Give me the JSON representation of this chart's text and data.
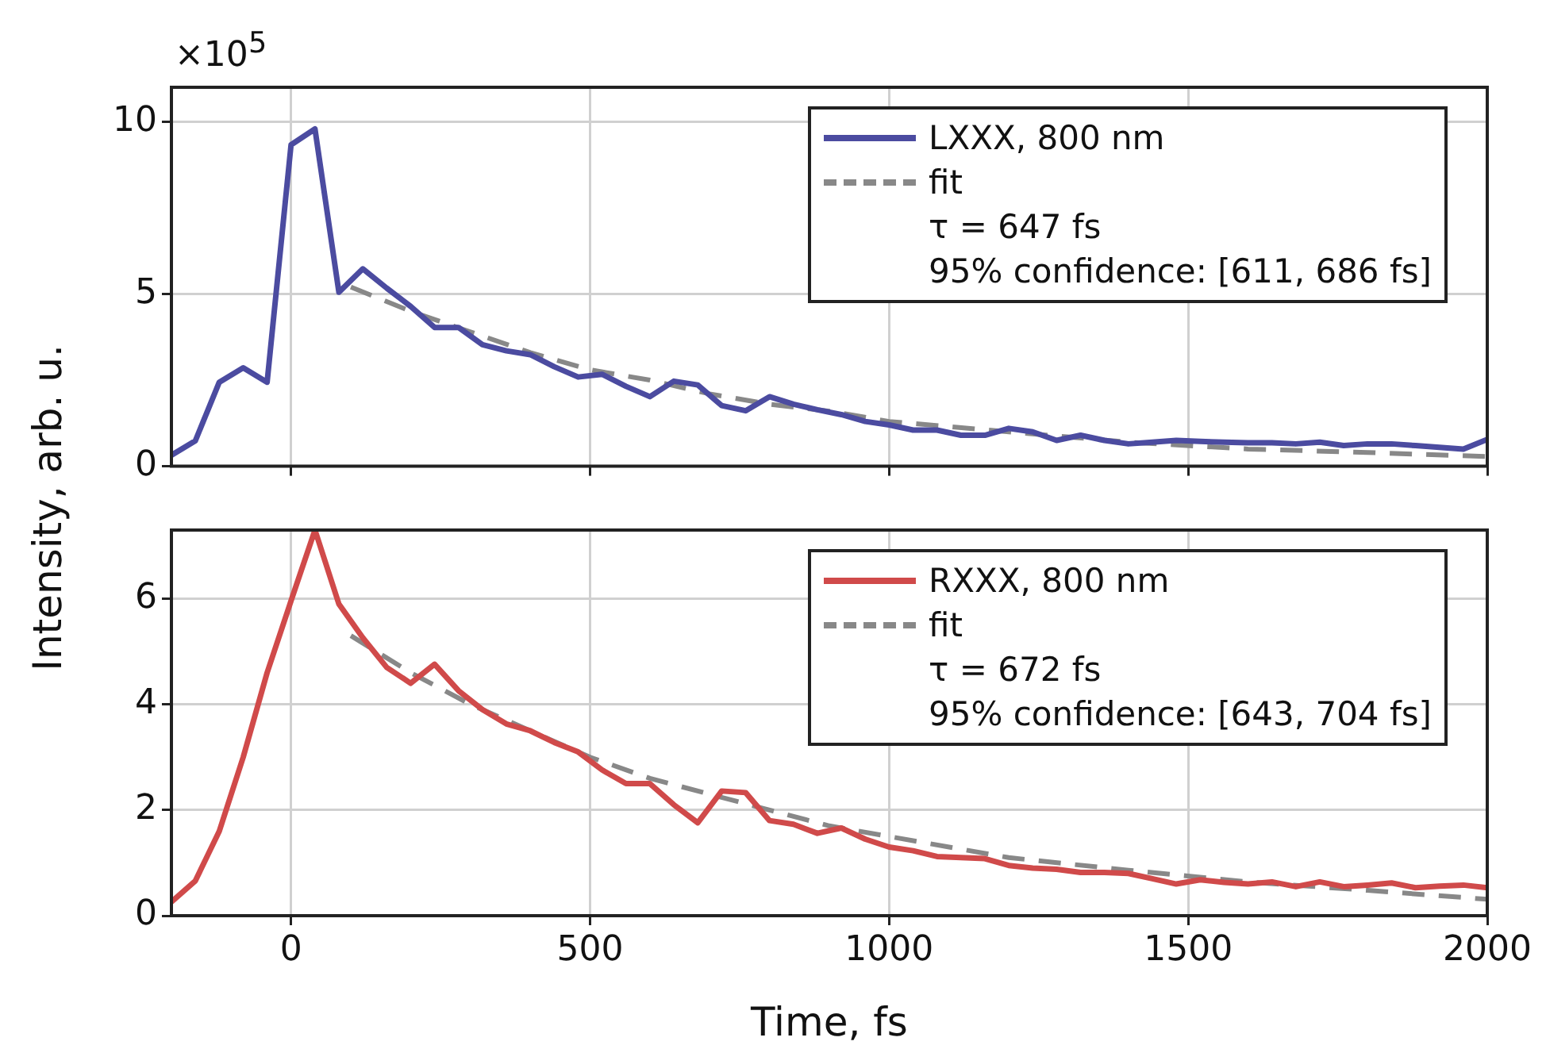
{
  "chart_data": [
    {
      "type": "line",
      "ylabel": "Intensity, arb. u.",
      "xlim": [
        -200,
        2000
      ],
      "xticks": [
        0,
        500,
        1000,
        1500,
        2000
      ],
      "ylim": [
        0,
        11
      ],
      "yticks": [
        0,
        5,
        10
      ],
      "tick_labels": "y",
      "grid": true,
      "legend": "top right",
      "marker": "none",
      "annotations": [
        "×10$^{5}$",
        "τ = 647 fs",
        "95% confidence: [611, 686 fs]"
      ],
      "series": [
        {
          "name": "LXXX, 800 nm",
          "color": "#4b4ba0",
          "line_style": "solid",
          "x": [
            -200,
            -160,
            -120,
            -80,
            -40,
            0,
            40,
            80,
            120,
            160,
            200,
            240,
            280,
            320,
            360,
            400,
            440,
            480,
            520,
            560,
            600,
            640,
            680,
            720,
            760,
            800,
            840,
            880,
            920,
            960,
            1000,
            1040,
            1080,
            1120,
            1160,
            1200,
            1240,
            1280,
            1320,
            1360,
            1400,
            1440,
            1480,
            1520,
            1560,
            1600,
            1640,
            1680,
            1720,
            1760,
            1800,
            1840,
            1880,
            1920,
            1960,
            2000
          ],
          "values": [
            0.32,
            0.74,
            2.44,
            2.86,
            2.44,
            9.33,
            9.79,
            5.05,
            5.73,
            5.17,
            4.64,
            4.03,
            4.03,
            3.53,
            3.35,
            3.24,
            2.89,
            2.59,
            2.67,
            2.32,
            2.02,
            2.47,
            2.36,
            1.76,
            1.61,
            2.02,
            1.8,
            1.64,
            1.5,
            1.3,
            1.2,
            1.05,
            1.05,
            0.9,
            0.9,
            1.1,
            1.0,
            0.75,
            0.9,
            0.75,
            0.65,
            0.7,
            0.75,
            0.72,
            0.7,
            0.68,
            0.68,
            0.65,
            0.7,
            0.6,
            0.65,
            0.65,
            0.6,
            0.55,
            0.5,
            0.78
          ]
        },
        {
          "name": "fit",
          "color": "#888888",
          "line_style": "dashed",
          "x": [
            100,
            200,
            300,
            400,
            500,
            600,
            700,
            800,
            900,
            1000,
            1200,
            1400,
            1600,
            1800,
            2000
          ],
          "values": [
            5.2,
            4.5,
            3.9,
            3.3,
            2.8,
            2.5,
            2.1,
            1.8,
            1.6,
            1.3,
            1.0,
            0.7,
            0.5,
            0.4,
            0.28
          ]
        }
      ]
    },
    {
      "type": "line",
      "xlabel": "Time, fs",
      "xlim": [
        -200,
        2000
      ],
      "xticks": [
        0,
        500,
        1000,
        1500,
        2000
      ],
      "ylim": [
        0,
        7.3
      ],
      "yticks": [
        0,
        2,
        4,
        6
      ],
      "grid": true,
      "legend": "top right",
      "marker": "none",
      "annotations": [
        "τ = 672 fs",
        "95% confidence: [643, 704 fs]"
      ],
      "series": [
        {
          "name": "RXXX, 800 nm",
          "color": "#d04a4a",
          "line_style": "solid",
          "x": [
            -200,
            -160,
            -120,
            -80,
            -40,
            0,
            40,
            80,
            120,
            160,
            200,
            240,
            280,
            320,
            360,
            400,
            440,
            480,
            520,
            560,
            600,
            640,
            680,
            720,
            760,
            800,
            840,
            880,
            920,
            960,
            1000,
            1040,
            1080,
            1120,
            1160,
            1200,
            1240,
            1280,
            1320,
            1360,
            1400,
            1440,
            1480,
            1520,
            1560,
            1600,
            1640,
            1680,
            1720,
            1760,
            1800,
            1840,
            1880,
            1920,
            1960,
            2000
          ],
          "values": [
            0.26,
            0.66,
            1.6,
            3.0,
            4.6,
            5.96,
            7.3,
            5.9,
            5.26,
            4.7,
            4.4,
            4.76,
            4.26,
            3.9,
            3.63,
            3.5,
            3.28,
            3.1,
            2.76,
            2.5,
            2.5,
            2.1,
            1.76,
            2.36,
            2.33,
            1.8,
            1.73,
            1.56,
            1.66,
            1.45,
            1.3,
            1.23,
            1.12,
            1.1,
            1.08,
            0.95,
            0.9,
            0.88,
            0.82,
            0.82,
            0.8,
            0.7,
            0.6,
            0.68,
            0.63,
            0.6,
            0.64,
            0.55,
            0.64,
            0.55,
            0.58,
            0.62,
            0.53,
            0.56,
            0.58,
            0.53
          ]
        },
        {
          "name": "fit",
          "color": "#888888",
          "line_style": "dashed",
          "x": [
            100,
            200,
            300,
            400,
            500,
            600,
            700,
            800,
            900,
            1000,
            1200,
            1400,
            1600,
            1800,
            2000
          ],
          "values": [
            5.3,
            4.6,
            4.0,
            3.5,
            3.0,
            2.6,
            2.3,
            2.0,
            1.7,
            1.5,
            1.1,
            0.86,
            0.64,
            0.48,
            0.31
          ]
        }
      ]
    }
  ]
}
